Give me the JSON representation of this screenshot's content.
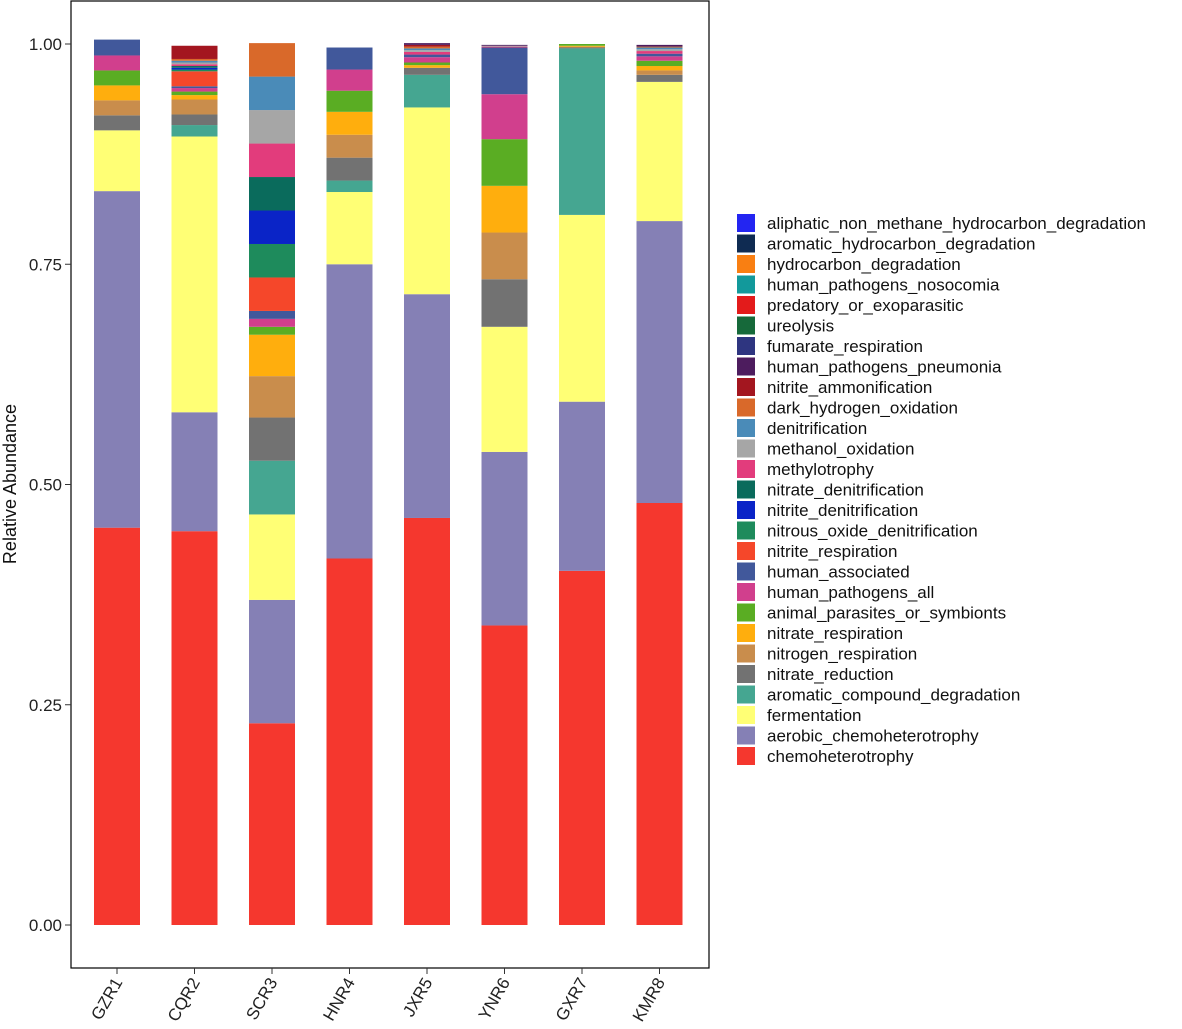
{
  "chart_data": {
    "type": "bar",
    "stacked": true,
    "title": "",
    "xlabel": "",
    "ylabel": "Relative Abundance",
    "ylim": [
      -0.05,
      1.03
    ],
    "yticks": [
      "0.00",
      "0.25",
      "0.50",
      "0.75",
      "1.00"
    ],
    "ytick_values": [
      0,
      0.25,
      0.5,
      0.75,
      1.0
    ],
    "categories": [
      "GZR1",
      "CQR2",
      "SCR3",
      "HNR4",
      "JXR5",
      "YNR6",
      "GXR7",
      "KMR8"
    ],
    "legend_position": "right",
    "series": [
      {
        "name": "chemoheterotrophy",
        "color": "#F5372E",
        "values": [
          0.451,
          0.447,
          0.229,
          0.416,
          0.462,
          0.34,
          0.402,
          0.479
        ]
      },
      {
        "name": "aerobic_chemoheterotrophy",
        "color": "#8580B5",
        "values": [
          0.382,
          0.135,
          0.14,
          0.334,
          0.254,
          0.197,
          0.192,
          0.32
        ]
      },
      {
        "name": "fermentation",
        "color": "#FFFF75",
        "values": [
          0.069,
          0.313,
          0.097,
          0.082,
          0.212,
          0.142,
          0.212,
          0.158
        ]
      },
      {
        "name": "aromatic_compound_degradation",
        "color": "#45A691",
        "values": [
          0.0,
          0.013,
          0.061,
          0.013,
          0.037,
          0.0,
          0.189,
          0.0
        ]
      },
      {
        "name": "nitrate_reduction",
        "color": "#727272",
        "values": [
          0.017,
          0.012,
          0.049,
          0.026,
          0.008,
          0.054,
          0.001,
          0.008
        ]
      },
      {
        "name": "nitrogen_respiration",
        "color": "#C98D4C",
        "values": [
          0.017,
          0.017,
          0.047,
          0.026,
          0.0,
          0.053,
          0.001,
          0.005
        ]
      },
      {
        "name": "nitrate_respiration",
        "color": "#FFAE0D",
        "values": [
          0.017,
          0.005,
          0.047,
          0.026,
          0.003,
          0.053,
          0.001,
          0.005
        ]
      },
      {
        "name": "animal_parasites_or_symbionts",
        "color": "#5AAD23",
        "values": [
          0.017,
          0.004,
          0.009,
          0.024,
          0.003,
          0.053,
          0.002,
          0.006
        ]
      },
      {
        "name": "human_pathogens_all",
        "color": "#D13F8D",
        "values": [
          0.017,
          0.004,
          0.009,
          0.024,
          0.006,
          0.051,
          0.0,
          0.005
        ]
      },
      {
        "name": "human_associated",
        "color": "#41589B",
        "values": [
          0.018,
          0.002,
          0.009,
          0.025,
          0.003,
          0.053,
          0.0,
          0.003
        ]
      },
      {
        "name": "nitrite_respiration",
        "color": "#F5472A",
        "values": [
          0.0,
          0.017,
          0.038,
          0.0,
          0.0,
          0.0,
          0.0,
          0.0
        ]
      },
      {
        "name": "nitrous_oxide_denitrification",
        "color": "#1E8B5C",
        "values": [
          0.0,
          0.002,
          0.038,
          0.0,
          0.0,
          0.0,
          0.0,
          0.0
        ]
      },
      {
        "name": "nitrite_denitrification",
        "color": "#0A24C7",
        "values": [
          0.0,
          0.002,
          0.038,
          0.0,
          0.0,
          0.0,
          0.0,
          0.0
        ]
      },
      {
        "name": "nitrate_denitrification",
        "color": "#0A6B5C",
        "values": [
          0.0,
          0.002,
          0.038,
          0.0,
          0.0,
          0.0,
          0.0,
          0.0
        ]
      },
      {
        "name": "methylotrophy",
        "color": "#E23C7C",
        "values": [
          0.0,
          0.002,
          0.038,
          0.0,
          0.003,
          0.001,
          0.0,
          0.003
        ]
      },
      {
        "name": "methanol_oxidation",
        "color": "#A6A6A6",
        "values": [
          0.0,
          0.002,
          0.038,
          0.0,
          0.002,
          0.001,
          0.0,
          0.002
        ]
      },
      {
        "name": "denitrification",
        "color": "#4A8BB8",
        "values": [
          0.0,
          0.002,
          0.038,
          0.0,
          0.002,
          0.0,
          0.0,
          0.002
        ]
      },
      {
        "name": "dark_hydrogen_oxidation",
        "color": "#D9692A",
        "values": [
          0.0,
          0.002,
          0.038,
          0.0,
          0.002,
          0.0,
          0.0,
          0.001
        ]
      },
      {
        "name": "nitrite_ammonification",
        "color": "#A3161F",
        "values": [
          0.0,
          0.015,
          0.0,
          0.0,
          0.002,
          0.0,
          0.0,
          0.0
        ]
      },
      {
        "name": "human_pathogens_pneumonia",
        "color": "#4D1C5E",
        "values": [
          0.0,
          0.0,
          0.0,
          0.0,
          0.002,
          0.001,
          0.0,
          0.002
        ]
      },
      {
        "name": "fumarate_respiration",
        "color": "#2E3580",
        "values": [
          0.0,
          0.0,
          0.0,
          0.0,
          0.0,
          0.0,
          0.0,
          0.0
        ]
      },
      {
        "name": "ureolysis",
        "color": "#16693A",
        "values": [
          0.0,
          0.0,
          0.0,
          0.0,
          0.0,
          0.0,
          0.0,
          0.0
        ]
      },
      {
        "name": "predatory_or_exoparasitic",
        "color": "#E31B1B",
        "values": [
          0.0,
          0.0,
          0.0,
          0.0,
          0.0,
          0.0,
          0.0,
          0.0
        ]
      },
      {
        "name": "human_pathogens_nosocomia",
        "color": "#12999B",
        "values": [
          0.0,
          0.0,
          0.0,
          0.0,
          0.0,
          0.0,
          0.0,
          0.0
        ]
      },
      {
        "name": "hydrocarbon_degradation",
        "color": "#F97F12",
        "values": [
          0.0,
          0.0,
          0.0,
          0.0,
          0.0,
          0.0,
          0.0,
          0.0
        ]
      },
      {
        "name": "aromatic_hydrocarbon_degradation",
        "color": "#0F2B52",
        "values": [
          0.0,
          0.0,
          0.0,
          0.0,
          0.0,
          0.0,
          0.0,
          0.0
        ]
      },
      {
        "name": "aliphatic_non_methane_hydrocarbon_degradation",
        "color": "#2325F2",
        "values": [
          0.0,
          0.0,
          0.0,
          0.0,
          0.0,
          0.0,
          0.0,
          0.0
        ]
      }
    ]
  }
}
